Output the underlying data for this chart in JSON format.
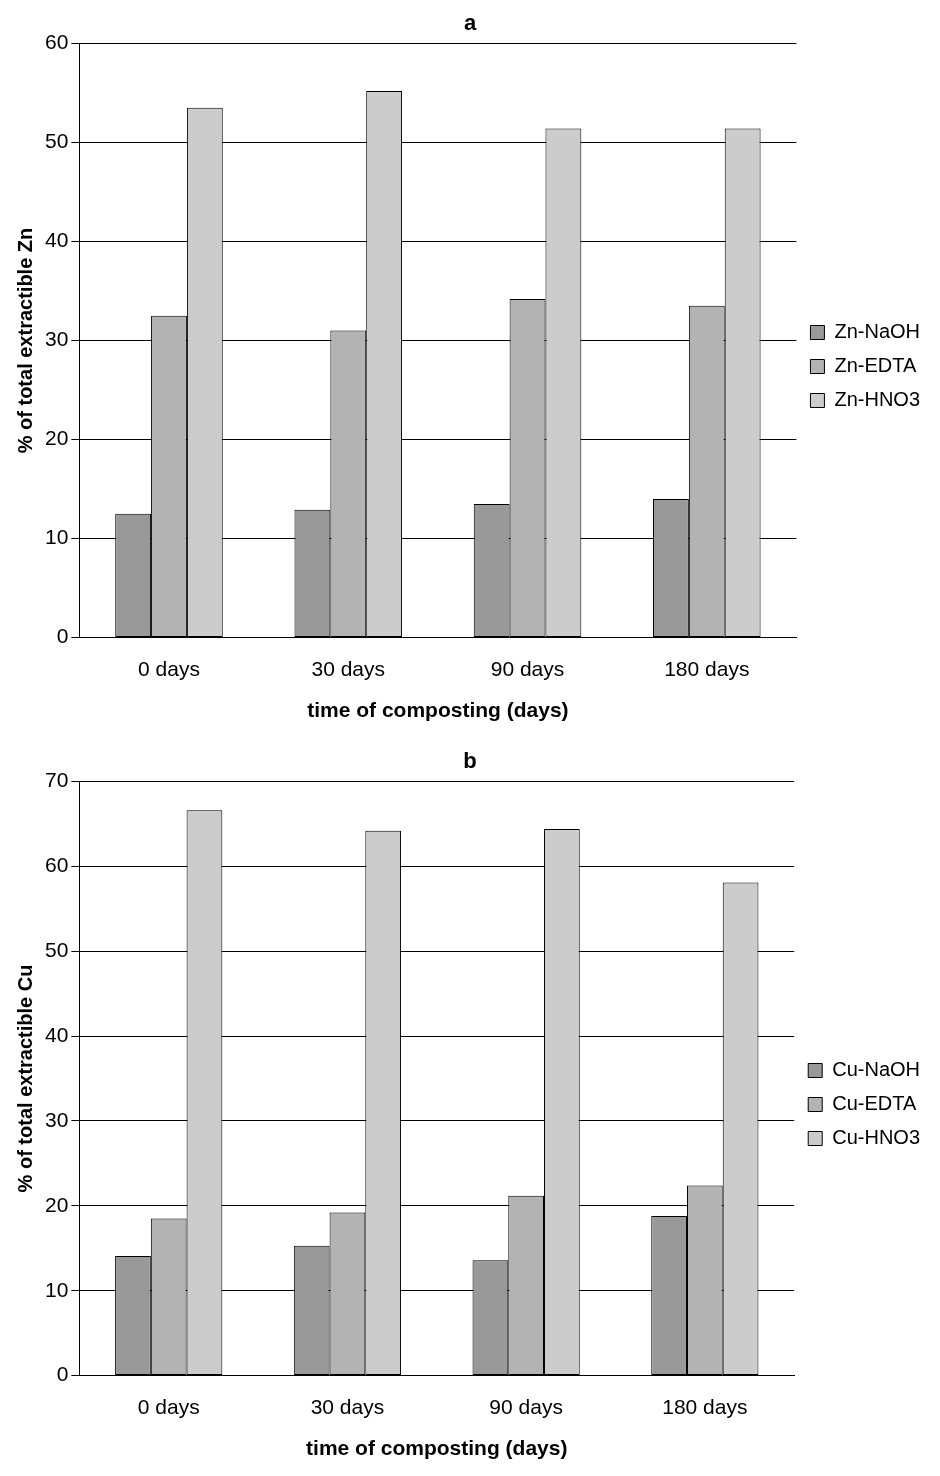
{
  "chart_data": [
    {
      "type": "bar",
      "title": "a",
      "xlabel": "time of composting (days)",
      "ylabel": "% of total extractible Zn",
      "categories": [
        "0 days",
        "30 days",
        "90 days",
        "180 days"
      ],
      "series": [
        {
          "name": "Zn-NaOH",
          "color": "#999999",
          "values": [
            12.5,
            12.9,
            13.5,
            14.0
          ]
        },
        {
          "name": "Zn-EDTA",
          "color": "#b3b3b3",
          "values": [
            32.5,
            31.0,
            34.2,
            33.5
          ]
        },
        {
          "name": "Zn-HNO3",
          "color": "#cccccc",
          "values": [
            53.5,
            55.2,
            51.4,
            51.4
          ]
        }
      ],
      "ylim": [
        0,
        60
      ],
      "yticks": [
        0,
        10,
        20,
        30,
        40,
        50,
        60
      ],
      "grid": "y",
      "legend": "right"
    },
    {
      "type": "bar",
      "title": "b",
      "xlabel": "time of composting (days)",
      "ylabel": "% of total extractible Cu",
      "categories": [
        "0 days",
        "30 days",
        "90 days",
        "180 days"
      ],
      "series": [
        {
          "name": "Cu-NaOH",
          "color": "#999999",
          "values": [
            14.1,
            15.3,
            13.6,
            18.8
          ]
        },
        {
          "name": "Cu-EDTA",
          "color": "#b3b3b3",
          "values": [
            18.5,
            19.2,
            21.2,
            22.4
          ]
        },
        {
          "name": "Cu-HNO3",
          "color": "#cccccc",
          "values": [
            66.6,
            64.2,
            64.4,
            58.1
          ]
        }
      ],
      "ylim": [
        0,
        70
      ],
      "yticks": [
        0,
        10,
        20,
        30,
        40,
        50,
        60,
        70
      ],
      "grid": "y",
      "legend": "right"
    }
  ]
}
